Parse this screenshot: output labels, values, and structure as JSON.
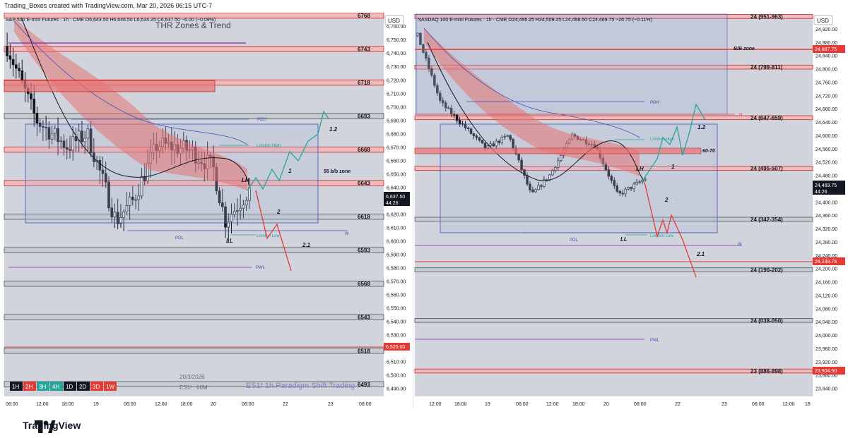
{
  "header": {
    "text": "Trading_Boxes created with TradingView.com, Mar 20, 2026 06:15 UTC-7"
  },
  "footer": {
    "brand": "TradingView"
  },
  "colors": {
    "up": "#e9ecef",
    "down": "#131722",
    "zone_fill": "#f3b7b7",
    "zone_edge": "#d32f2f",
    "bg": "#d1d4dc",
    "grid": "#aeb2bb",
    "accent_red": "#e53935",
    "accent_green": "#26a69a"
  },
  "left_chart": {
    "legend": "S&P 500 E-mini Futures · 1h · CME  O6,643.50  H6,646.50  L6,634.25  C6,637.50  −6.00 (−0.09%)",
    "watermark_title": "THR Zones & Trend",
    "watermark_bottom": "ES1! 1h   Paradigm Shift Trading",
    "date_note": "20/3/2026",
    "symbol_note": "ES1! , 60M",
    "currency": "USD",
    "interval_buttons": [
      "1H",
      "2H",
      "3H",
      "4H",
      "1D",
      "2D",
      "3D",
      "1W"
    ],
    "price_labels": [
      "6,760.00",
      "6,750.00",
      "6,740.00",
      "6,730.00",
      "6,720.00",
      "6,710.00",
      "6,700.00",
      "6,690.00",
      "6,680.00",
      "6,670.00",
      "6,660.00",
      "6,650.00",
      "6,640.00",
      "6,630.00",
      "6,620.00",
      "6,610.00",
      "6,600.00",
      "6,590.00",
      "6,580.00",
      "6,570.00",
      "6,560.00",
      "6,550.00",
      "6,540.00",
      "6,530.00",
      "6,520.00",
      "6,510.00",
      "6,500.00",
      "6,490.00"
    ],
    "current_price": "6,637.50",
    "countdown": "44:26",
    "red_price_tag": "6,525.00",
    "time_labels": [
      "06:00",
      "12:00",
      "18:00",
      "19",
      "06:00",
      "12:00",
      "18:00",
      "20",
      "06:00",
      "22",
      "23",
      "06:00"
    ],
    "zone_labels": [
      "6768",
      "6743",
      "6718",
      "6693",
      "6668",
      "6643",
      "6618",
      "6593",
      "6568",
      "6543",
      "6518",
      "6493"
    ],
    "annotations": {
      "pdh": "PDH",
      "pdl": "PDL",
      "pwl": "PWL",
      "london_high": "London High",
      "london_low": "London Low",
      "lh": "LH",
      "ll": "LL",
      "w": "W",
      "bb_zone": "55 b/b zone",
      "n1_2": "1.2",
      "n1": "1",
      "n2": "2",
      "n2_1": "2.1"
    }
  },
  "right_chart": {
    "legend": "NASDAQ 100 E-mini Futures · 1h · CME  O24,496.25  H24,509.25  L24,458.50  C24,469.75  −26.75 (−0.11%)",
    "currency": "USD",
    "price_labels": [
      "24,920.00",
      "24,880.00",
      "24,840.00",
      "24,800.00",
      "24,760.00",
      "24,720.00",
      "24,680.00",
      "24,640.00",
      "24,600.00",
      "24,560.00",
      "24,520.00",
      "24,480.00",
      "24,440.00",
      "24,400.00",
      "24,360.00",
      "24,320.00",
      "24,280.00",
      "24,240.00",
      "24,200.00",
      "24,160.00",
      "24,120.00",
      "24,080.00",
      "24,040.00",
      "24,000.00",
      "23,960.00",
      "23,920.00",
      "23,880.00",
      "23,840.00"
    ],
    "current_price": "24,469.75",
    "countdown": "44:26",
    "red_tag_top": "24,887.75",
    "red_tag_mid": "24,239.75",
    "red_tag_bottom": "23,904.50",
    "time_labels": [
      "12:00",
      "18:00",
      "19",
      "06:00",
      "12:00",
      "18:00",
      "20",
      "06:00",
      "22",
      "23",
      "06:00",
      "12:00",
      "18"
    ],
    "zone_labels": [
      "24 (951-963)",
      "24 (799-811)",
      "24 (647-659)",
      "24 (495-507)",
      "24 (342-354)",
      "24 (190-202)",
      "24 (038-050)",
      "23 (886-898)"
    ],
    "annotations": {
      "pdh": "PDH",
      "pdl": "PDL",
      "pwl": "PWL",
      "london_high": "London High",
      "london_low": "London Low",
      "lh": "LH",
      "ll": "LL",
      "w": "W",
      "bb_zone": "B/B zone",
      "n60_70": "60-70",
      "n1_2": "1.2",
      "n1": "1",
      "n2": "2",
      "n2_1": "2.1",
      "h": "H"
    }
  },
  "chart_data": [
    {
      "type": "candlestick",
      "title": "S&P 500 E-mini Futures · 1h · CME",
      "ylim": [
        6485,
        6768
      ],
      "x": [
        "19 00:00",
        "19 06:00",
        "19 12:00",
        "19 18:00",
        "20 00:00",
        "20 06:00"
      ],
      "series": [
        {
          "values": [
            6745,
            6690,
            6670,
            6615,
            6660,
            6637.5
          ]
        }
      ]
    },
    {
      "type": "candlestick",
      "title": "NASDAQ 100 E-mini Futures · 1h · CME",
      "ylim": [
        23820,
        24960
      ],
      "x": [
        "19 00:00",
        "19 06:00",
        "19 12:00",
        "19 18:00",
        "20 00:00",
        "20 06:00"
      ],
      "series": [
        {
          "values": [
            24900,
            24630,
            24560,
            24420,
            24560,
            24469.75
          ]
        }
      ]
    }
  ]
}
